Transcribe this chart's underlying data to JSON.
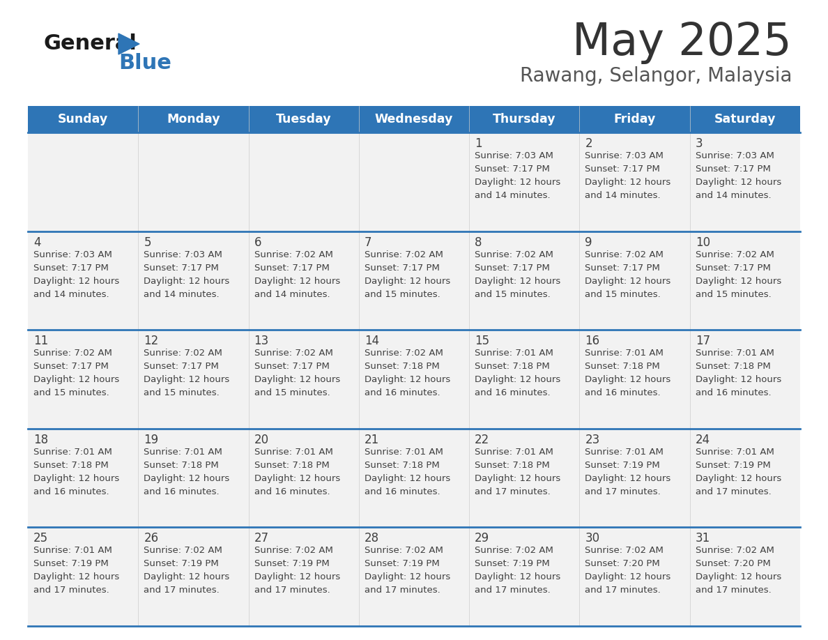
{
  "title": "May 2025",
  "subtitle": "Rawang, Selangor, Malaysia",
  "days_of_week": [
    "Sunday",
    "Monday",
    "Tuesday",
    "Wednesday",
    "Thursday",
    "Friday",
    "Saturday"
  ],
  "header_bg": "#2E75B6",
  "header_text": "#FFFFFF",
  "cell_bg": "#F2F2F2",
  "cell_text_color": "#404040",
  "border_color": "#2E75B6",
  "title_color": "#333333",
  "subtitle_color": "#555555",
  "logo_black": "#1a1a1a",
  "logo_blue": "#2E75B6",
  "calendar_data": [
    [
      {
        "day": "",
        "sunrise": "",
        "sunset": "",
        "daylight": ""
      },
      {
        "day": "",
        "sunrise": "",
        "sunset": "",
        "daylight": ""
      },
      {
        "day": "",
        "sunrise": "",
        "sunset": "",
        "daylight": ""
      },
      {
        "day": "",
        "sunrise": "",
        "sunset": "",
        "daylight": ""
      },
      {
        "day": "1",
        "sunrise": "7:03 AM",
        "sunset": "7:17 PM",
        "daylight": "12 hours\nand 14 minutes."
      },
      {
        "day": "2",
        "sunrise": "7:03 AM",
        "sunset": "7:17 PM",
        "daylight": "12 hours\nand 14 minutes."
      },
      {
        "day": "3",
        "sunrise": "7:03 AM",
        "sunset": "7:17 PM",
        "daylight": "12 hours\nand 14 minutes."
      }
    ],
    [
      {
        "day": "4",
        "sunrise": "7:03 AM",
        "sunset": "7:17 PM",
        "daylight": "12 hours\nand 14 minutes."
      },
      {
        "day": "5",
        "sunrise": "7:03 AM",
        "sunset": "7:17 PM",
        "daylight": "12 hours\nand 14 minutes."
      },
      {
        "day": "6",
        "sunrise": "7:02 AM",
        "sunset": "7:17 PM",
        "daylight": "12 hours\nand 14 minutes."
      },
      {
        "day": "7",
        "sunrise": "7:02 AM",
        "sunset": "7:17 PM",
        "daylight": "12 hours\nand 15 minutes."
      },
      {
        "day": "8",
        "sunrise": "7:02 AM",
        "sunset": "7:17 PM",
        "daylight": "12 hours\nand 15 minutes."
      },
      {
        "day": "9",
        "sunrise": "7:02 AM",
        "sunset": "7:17 PM",
        "daylight": "12 hours\nand 15 minutes."
      },
      {
        "day": "10",
        "sunrise": "7:02 AM",
        "sunset": "7:17 PM",
        "daylight": "12 hours\nand 15 minutes."
      }
    ],
    [
      {
        "day": "11",
        "sunrise": "7:02 AM",
        "sunset": "7:17 PM",
        "daylight": "12 hours\nand 15 minutes."
      },
      {
        "day": "12",
        "sunrise": "7:02 AM",
        "sunset": "7:17 PM",
        "daylight": "12 hours\nand 15 minutes."
      },
      {
        "day": "13",
        "sunrise": "7:02 AM",
        "sunset": "7:17 PM",
        "daylight": "12 hours\nand 15 minutes."
      },
      {
        "day": "14",
        "sunrise": "7:02 AM",
        "sunset": "7:18 PM",
        "daylight": "12 hours\nand 16 minutes."
      },
      {
        "day": "15",
        "sunrise": "7:01 AM",
        "sunset": "7:18 PM",
        "daylight": "12 hours\nand 16 minutes."
      },
      {
        "day": "16",
        "sunrise": "7:01 AM",
        "sunset": "7:18 PM",
        "daylight": "12 hours\nand 16 minutes."
      },
      {
        "day": "17",
        "sunrise": "7:01 AM",
        "sunset": "7:18 PM",
        "daylight": "12 hours\nand 16 minutes."
      }
    ],
    [
      {
        "day": "18",
        "sunrise": "7:01 AM",
        "sunset": "7:18 PM",
        "daylight": "12 hours\nand 16 minutes."
      },
      {
        "day": "19",
        "sunrise": "7:01 AM",
        "sunset": "7:18 PM",
        "daylight": "12 hours\nand 16 minutes."
      },
      {
        "day": "20",
        "sunrise": "7:01 AM",
        "sunset": "7:18 PM",
        "daylight": "12 hours\nand 16 minutes."
      },
      {
        "day": "21",
        "sunrise": "7:01 AM",
        "sunset": "7:18 PM",
        "daylight": "12 hours\nand 16 minutes."
      },
      {
        "day": "22",
        "sunrise": "7:01 AM",
        "sunset": "7:18 PM",
        "daylight": "12 hours\nand 17 minutes."
      },
      {
        "day": "23",
        "sunrise": "7:01 AM",
        "sunset": "7:19 PM",
        "daylight": "12 hours\nand 17 minutes."
      },
      {
        "day": "24",
        "sunrise": "7:01 AM",
        "sunset": "7:19 PM",
        "daylight": "12 hours\nand 17 minutes."
      }
    ],
    [
      {
        "day": "25",
        "sunrise": "7:01 AM",
        "sunset": "7:19 PM",
        "daylight": "12 hours\nand 17 minutes."
      },
      {
        "day": "26",
        "sunrise": "7:02 AM",
        "sunset": "7:19 PM",
        "daylight": "12 hours\nand 17 minutes."
      },
      {
        "day": "27",
        "sunrise": "7:02 AM",
        "sunset": "7:19 PM",
        "daylight": "12 hours\nand 17 minutes."
      },
      {
        "day": "28",
        "sunrise": "7:02 AM",
        "sunset": "7:19 PM",
        "daylight": "12 hours\nand 17 minutes."
      },
      {
        "day": "29",
        "sunrise": "7:02 AM",
        "sunset": "7:19 PM",
        "daylight": "12 hours\nand 17 minutes."
      },
      {
        "day": "30",
        "sunrise": "7:02 AM",
        "sunset": "7:20 PM",
        "daylight": "12 hours\nand 17 minutes."
      },
      {
        "day": "31",
        "sunrise": "7:02 AM",
        "sunset": "7:20 PM",
        "daylight": "12 hours\nand 17 minutes."
      }
    ]
  ]
}
